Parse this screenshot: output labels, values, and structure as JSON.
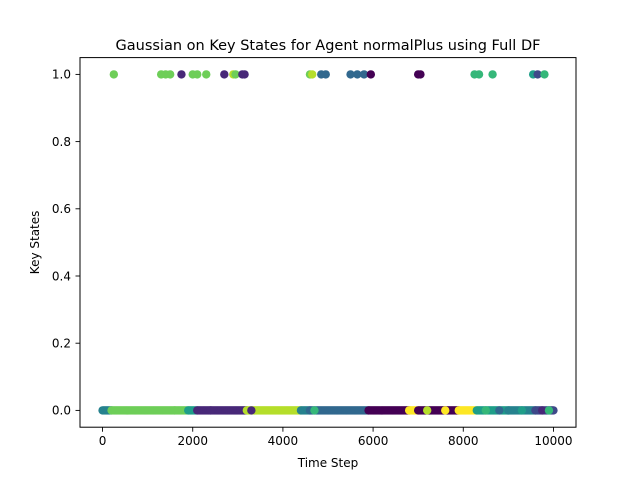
{
  "chart_data": {
    "type": "scatter",
    "title": "Gaussian on Key States for Agent normalPlus using Full DF",
    "xlabel": "Time Step",
    "ylabel": "Key States",
    "xlim": [
      -500,
      10500
    ],
    "ylim": [
      -0.05,
      1.05
    ],
    "xticks": [
      0,
      2000,
      4000,
      6000,
      8000,
      10000
    ],
    "xtick_labels": [
      "0",
      "2000",
      "4000",
      "6000",
      "8000",
      "10000"
    ],
    "yticks": [
      0.0,
      0.2,
      0.4,
      0.6,
      0.8,
      1.0
    ],
    "ytick_labels": [
      "0.0",
      "0.2",
      "0.4",
      "0.6",
      "0.8",
      "1.0"
    ],
    "grid": false,
    "legend": "none",
    "colormap": "viridis",
    "colors": {
      "c0": "#440154",
      "c1": "#482878",
      "c2": "#3e4989",
      "c3": "#31688e",
      "c4": "#26828e",
      "c5": "#1f9e89",
      "c6": "#35b779",
      "c7": "#6ece58",
      "c8": "#b5de2b",
      "c9": "#fde725"
    },
    "segments_y0": [
      {
        "x_start": 0,
        "x_end": 200,
        "step": 20,
        "color": "c4"
      },
      {
        "x_start": 200,
        "x_end": 1900,
        "step": 20,
        "color": "c7"
      },
      {
        "x_start": 1900,
        "x_end": 2100,
        "step": 20,
        "color": "c5"
      },
      {
        "x_start": 2100,
        "x_end": 3200,
        "step": 20,
        "color": "c1"
      },
      {
        "x_start": 3200,
        "x_end": 4400,
        "step": 20,
        "color": "c8"
      },
      {
        "x_start": 4400,
        "x_end": 4600,
        "step": 20,
        "color": "c4"
      },
      {
        "x_start": 4600,
        "x_end": 5900,
        "step": 20,
        "color": "c3"
      },
      {
        "x_start": 5900,
        "x_end": 6800,
        "step": 20,
        "color": "c0"
      },
      {
        "x_start": 6800,
        "x_end": 7000,
        "step": 20,
        "color": "c9"
      },
      {
        "x_start": 7000,
        "x_end": 7900,
        "step": 20,
        "color": "c0"
      },
      {
        "x_start": 7900,
        "x_end": 8300,
        "step": 20,
        "color": "c9"
      },
      {
        "x_start": 8300,
        "x_end": 9000,
        "step": 20,
        "color": "c5"
      },
      {
        "x_start": 9000,
        "x_end": 9600,
        "step": 20,
        "color": "c4"
      },
      {
        "x_start": 9600,
        "x_end": 10000,
        "step": 20,
        "color": "c2"
      }
    ],
    "points_y0_extra": [
      {
        "x": 1600,
        "color": "c7"
      },
      {
        "x": 2400,
        "color": "c1"
      },
      {
        "x": 3300,
        "color": "c1"
      },
      {
        "x": 4700,
        "color": "c6"
      },
      {
        "x": 7200,
        "color": "c8"
      },
      {
        "x": 7600,
        "color": "c9"
      },
      {
        "x": 8500,
        "color": "c6"
      },
      {
        "x": 8800,
        "color": "c3"
      },
      {
        "x": 9300,
        "color": "c5"
      },
      {
        "x": 9750,
        "color": "c1"
      },
      {
        "x": 9900,
        "color": "c6"
      }
    ],
    "points_y1": [
      {
        "x": 250,
        "color": "c7"
      },
      {
        "x": 1300,
        "color": "c7"
      },
      {
        "x": 1400,
        "color": "c7"
      },
      {
        "x": 1500,
        "color": "c7"
      },
      {
        "x": 1750,
        "color": "c1"
      },
      {
        "x": 2000,
        "color": "c7"
      },
      {
        "x": 2100,
        "color": "c7"
      },
      {
        "x": 2300,
        "color": "c7"
      },
      {
        "x": 2700,
        "color": "c1"
      },
      {
        "x": 2900,
        "color": "c8"
      },
      {
        "x": 2950,
        "color": "c7"
      },
      {
        "x": 3100,
        "color": "c1"
      },
      {
        "x": 3150,
        "color": "c1"
      },
      {
        "x": 4600,
        "color": "c7"
      },
      {
        "x": 4650,
        "color": "c8"
      },
      {
        "x": 4850,
        "color": "c3"
      },
      {
        "x": 4950,
        "color": "c3"
      },
      {
        "x": 5500,
        "color": "c3"
      },
      {
        "x": 5650,
        "color": "c3"
      },
      {
        "x": 5800,
        "color": "c3"
      },
      {
        "x": 5950,
        "color": "c0"
      },
      {
        "x": 7000,
        "color": "c0"
      },
      {
        "x": 7050,
        "color": "c0"
      },
      {
        "x": 8250,
        "color": "c6"
      },
      {
        "x": 8350,
        "color": "c6"
      },
      {
        "x": 8650,
        "color": "c6"
      },
      {
        "x": 9550,
        "color": "c5"
      },
      {
        "x": 9650,
        "color": "c2"
      },
      {
        "x": 9800,
        "color": "c6"
      }
    ]
  }
}
